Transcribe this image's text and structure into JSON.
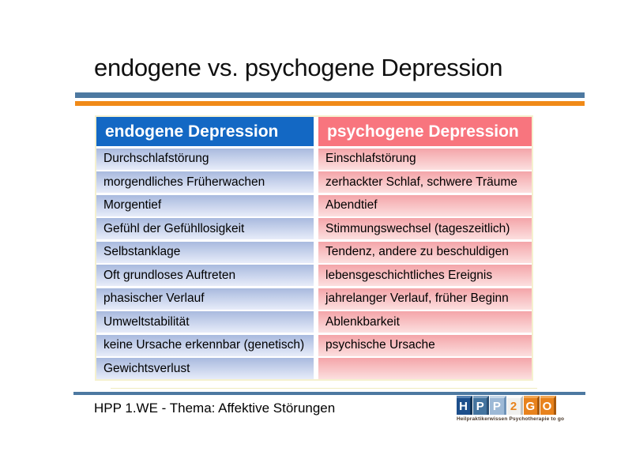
{
  "slide": {
    "title": "endogene vs. psychogene Depression",
    "footer_note": "HPP 1.WE - Thema: Affektive Störungen"
  },
  "table": {
    "headers": [
      {
        "label": "endogene Depression",
        "color": "#1368c4"
      },
      {
        "label": "psychogene Depression",
        "color": "#f8757e"
      }
    ],
    "rows": [
      {
        "left": "Durchschlafstörung",
        "right": "Einschlafstörung"
      },
      {
        "left": "morgendliches Früherwachen",
        "right": "zerhackter Schlaf, schwere Träume"
      },
      {
        "left": "Morgentief",
        "right": "Abendtief"
      },
      {
        "left": "Gefühl der Gefühllosigkeit",
        "right": "Stimmungswechsel (tageszeitlich)"
      },
      {
        "left": "Selbstanklage",
        "right": "Tendenz, andere zu beschuldigen"
      },
      {
        "left": "Oft grundloses Auftreten",
        "right": "lebensgeschichtliches Ereignis"
      },
      {
        "left": "phasischer Verlauf",
        "right": "jahrelanger Verlauf, früher Beginn"
      },
      {
        "left": "Umweltstabilität",
        "right": "Ablenkbarkeit"
      },
      {
        "left": "keine Ursache erkennbar (genetisch)",
        "right": "psychische Ursache"
      },
      {
        "left": "Gewichtsverlust",
        "right": ""
      }
    ]
  },
  "logo": {
    "blocks": [
      {
        "letter": "H",
        "color": "#1d4f8c"
      },
      {
        "letter": "P",
        "color": "#44749f"
      },
      {
        "letter": "P",
        "color": "#9db9d6"
      },
      {
        "letter": "2",
        "color": "#f0f0ee"
      },
      {
        "letter": "G",
        "color": "#e8821c"
      },
      {
        "letter": "O",
        "color": "#e8821c"
      }
    ],
    "tagline": "Heilpraktikerwissen Psychotherapie to go"
  },
  "colors": {
    "divider_blue": "#4d79a1",
    "divider_orange": "#f08a18",
    "bottom_divider_blue": "#4d79a1",
    "row_blue_top": "#a9bade",
    "row_blue_bottom": "#e7ecf9",
    "row_pink_top": "#f4a5a9",
    "row_pink_bottom": "#fcdfdf",
    "table_border_yellow": "#f5f1cf"
  }
}
